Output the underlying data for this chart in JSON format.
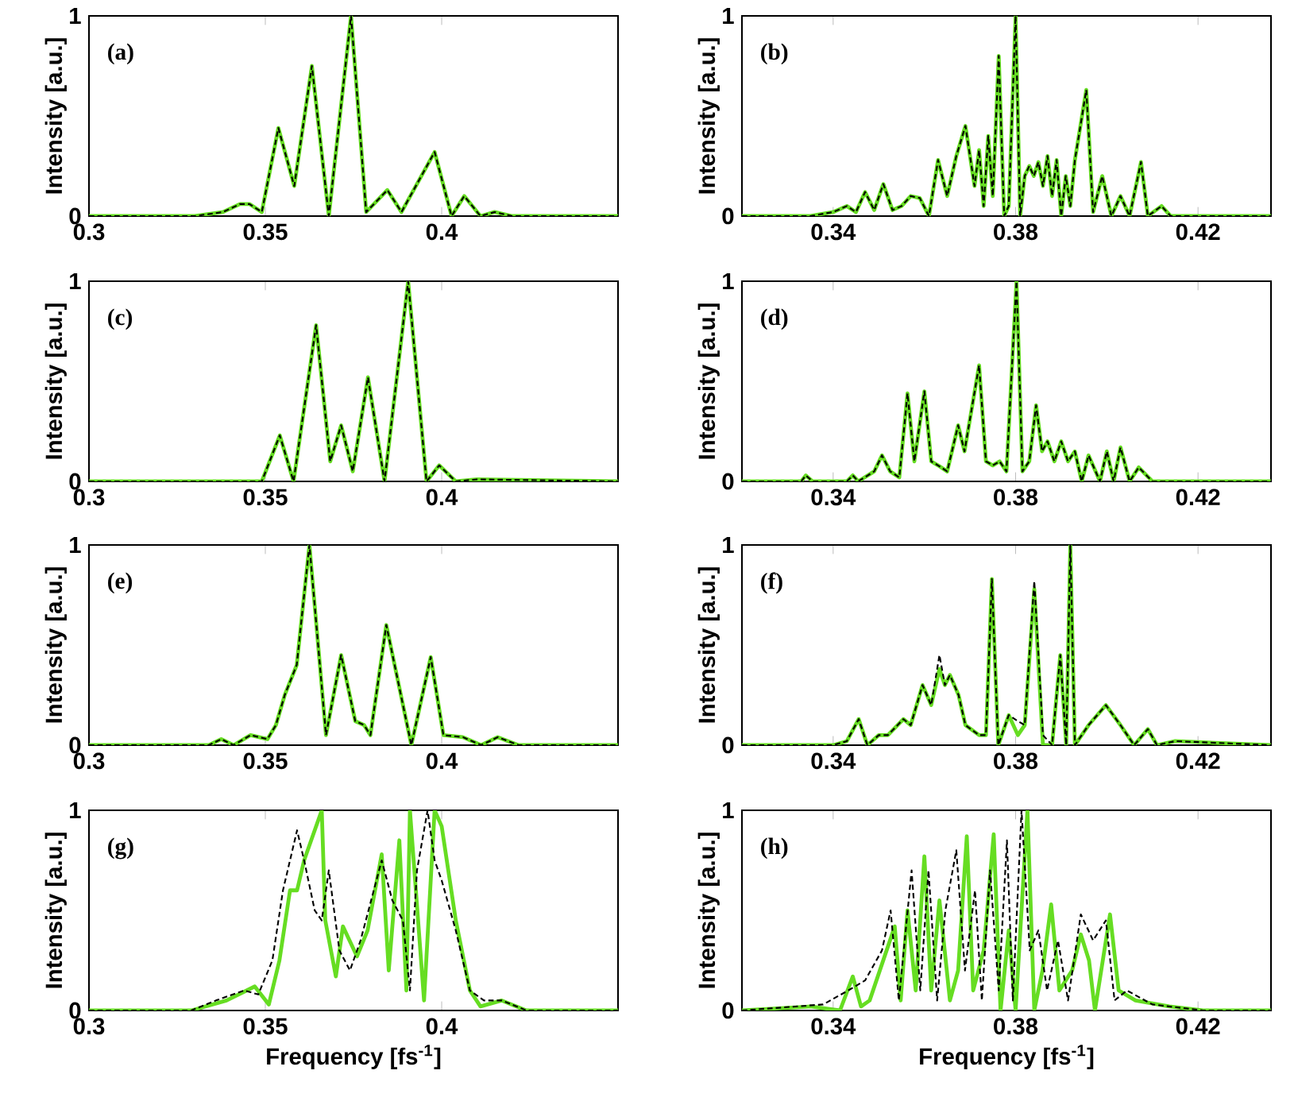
{
  "chart_data": [
    {
      "type": "line",
      "annotations": [
        "(a)"
      ],
      "ylabel": "Intensity [a.u.]",
      "xlim": [
        0.3,
        0.45
      ],
      "ylim": [
        0,
        1
      ],
      "xticks": [
        0.3,
        0.35,
        0.4
      ],
      "yticks": [
        0,
        1
      ],
      "x": [
        0.3,
        0.33,
        0.338,
        0.3428,
        0.3455,
        0.349,
        0.3537,
        0.3582,
        0.3632,
        0.368,
        0.3743,
        0.3786,
        0.3846,
        0.3886,
        0.398,
        0.4028,
        0.4064,
        0.411,
        0.415,
        0.42,
        0.425,
        0.45
      ],
      "series": [
        {
          "color": "#66dd22",
          "line_style": "solid",
          "values": [
            0,
            0,
            0.02,
            0.06,
            0.06,
            0.02,
            0.44,
            0.15,
            0.75,
            0.0,
            1.0,
            0.02,
            0.13,
            0.02,
            0.32,
            0.0,
            0.1,
            0.0,
            0.02,
            0.0,
            0,
            0
          ]
        },
        {
          "color": "#000000",
          "line_style": "dashed",
          "values": [
            0,
            0,
            0.02,
            0.06,
            0.06,
            0.02,
            0.44,
            0.15,
            0.75,
            0.0,
            1.0,
            0.02,
            0.13,
            0.02,
            0.32,
            0.0,
            0.1,
            0.0,
            0.02,
            0.0,
            0,
            0
          ]
        }
      ]
    },
    {
      "type": "line",
      "annotations": [
        "(b)"
      ],
      "ylabel": "Intensity [a.u.]",
      "xlim": [
        0.32,
        0.436
      ],
      "ylim": [
        0,
        1
      ],
      "xticks": [
        0.34,
        0.38,
        0.42
      ],
      "yticks": [
        0,
        1
      ],
      "x": [
        0.32,
        0.335,
        0.34,
        0.343,
        0.345,
        0.347,
        0.349,
        0.351,
        0.353,
        0.355,
        0.357,
        0.359,
        0.361,
        0.363,
        0.365,
        0.367,
        0.369,
        0.371,
        0.372,
        0.373,
        0.374,
        0.375,
        0.3763,
        0.3775,
        0.3785,
        0.38,
        0.381,
        0.382,
        0.383,
        0.384,
        0.385,
        0.386,
        0.387,
        0.388,
        0.389,
        0.39,
        0.391,
        0.392,
        0.393,
        0.3955,
        0.397,
        0.399,
        0.401,
        0.403,
        0.405,
        0.4075,
        0.409,
        0.412,
        0.414,
        0.436
      ],
      "series": [
        {
          "color": "#66dd22",
          "line_style": "solid",
          "values": [
            0,
            0,
            0.02,
            0.05,
            0.02,
            0.12,
            0.03,
            0.16,
            0.03,
            0.05,
            0.1,
            0.09,
            0.0,
            0.28,
            0.1,
            0.3,
            0.45,
            0.15,
            0.33,
            0.05,
            0.4,
            0.1,
            0.8,
            0.0,
            0.05,
            1.0,
            0.0,
            0.2,
            0.25,
            0.2,
            0.27,
            0.15,
            0.3,
            0.1,
            0.28,
            0.0,
            0.2,
            0.05,
            0.28,
            0.63,
            0.02,
            0.2,
            0.0,
            0.1,
            0.0,
            0.27,
            0.0,
            0.05,
            0.0,
            0
          ]
        },
        {
          "color": "#000000",
          "line_style": "dashed",
          "values": [
            0,
            0,
            0.02,
            0.05,
            0.02,
            0.12,
            0.03,
            0.16,
            0.03,
            0.05,
            0.1,
            0.09,
            0.0,
            0.28,
            0.1,
            0.3,
            0.45,
            0.15,
            0.33,
            0.05,
            0.4,
            0.1,
            0.8,
            0.0,
            0.05,
            1.0,
            0.0,
            0.2,
            0.25,
            0.2,
            0.27,
            0.15,
            0.3,
            0.1,
            0.28,
            0.0,
            0.2,
            0.05,
            0.28,
            0.63,
            0.02,
            0.2,
            0.0,
            0.1,
            0.0,
            0.27,
            0.0,
            0.05,
            0.0,
            0
          ]
        }
      ]
    },
    {
      "type": "line",
      "annotations": [
        "(c)"
      ],
      "ylabel": "Intensity [a.u.]",
      "xlim": [
        0.3,
        0.45
      ],
      "ylim": [
        0,
        1
      ],
      "xticks": [
        0.3,
        0.35,
        0.4
      ],
      "yticks": [
        0,
        1
      ],
      "x": [
        0.3,
        0.345,
        0.349,
        0.3541,
        0.358,
        0.3644,
        0.3684,
        0.3715,
        0.3748,
        0.3791,
        0.3838,
        0.3905,
        0.3957,
        0.3993,
        0.404,
        0.41,
        0.45
      ],
      "series": [
        {
          "color": "#66dd22",
          "line_style": "solid",
          "values": [
            0,
            0,
            0.0,
            0.23,
            0.0,
            0.78,
            0.1,
            0.28,
            0.05,
            0.52,
            0.0,
            1.0,
            0.0,
            0.08,
            0.0,
            0.01,
            0
          ]
        },
        {
          "color": "#000000",
          "line_style": "dashed",
          "values": [
            0,
            0,
            0.0,
            0.23,
            0.0,
            0.78,
            0.1,
            0.28,
            0.05,
            0.52,
            0.0,
            1.0,
            0.0,
            0.08,
            0.0,
            0.01,
            0
          ]
        }
      ]
    },
    {
      "type": "line",
      "annotations": [
        "(d)"
      ],
      "ylabel": "Intensity [a.u.]",
      "xlim": [
        0.32,
        0.436
      ],
      "ylim": [
        0,
        1
      ],
      "xticks": [
        0.34,
        0.38,
        0.42
      ],
      "yticks": [
        0,
        1
      ],
      "x": [
        0.32,
        0.333,
        0.334,
        0.3355,
        0.343,
        0.3443,
        0.3455,
        0.349,
        0.3507,
        0.3525,
        0.3545,
        0.3563,
        0.3578,
        0.36,
        0.3615,
        0.363,
        0.365,
        0.3674,
        0.3688,
        0.372,
        0.3735,
        0.375,
        0.3765,
        0.378,
        0.3802,
        0.3815,
        0.383,
        0.3845,
        0.3858,
        0.387,
        0.3885,
        0.39,
        0.3915,
        0.393,
        0.3945,
        0.396,
        0.3985,
        0.4,
        0.4015,
        0.403,
        0.405,
        0.407,
        0.41,
        0.436
      ],
      "series": [
        {
          "color": "#66dd22",
          "line_style": "solid",
          "values": [
            0,
            0,
            0.03,
            0,
            0,
            0.03,
            0,
            0.05,
            0.13,
            0.05,
            0.02,
            0.44,
            0.1,
            0.45,
            0.1,
            0.08,
            0.05,
            0.28,
            0.15,
            0.58,
            0.1,
            0.08,
            0.1,
            0.05,
            1.0,
            0.05,
            0.1,
            0.38,
            0.15,
            0.2,
            0.1,
            0.2,
            0.1,
            0.15,
            0.0,
            0.13,
            0.0,
            0.15,
            0.0,
            0.17,
            0.0,
            0.07,
            0.0,
            0
          ]
        },
        {
          "color": "#000000",
          "line_style": "dashed",
          "values": [
            0,
            0,
            0.03,
            0,
            0,
            0.03,
            0,
            0.05,
            0.13,
            0.05,
            0.02,
            0.44,
            0.1,
            0.45,
            0.1,
            0.08,
            0.05,
            0.28,
            0.15,
            0.58,
            0.1,
            0.08,
            0.1,
            0.05,
            1.0,
            0.05,
            0.1,
            0.38,
            0.15,
            0.2,
            0.1,
            0.2,
            0.1,
            0.15,
            0.0,
            0.13,
            0.0,
            0.15,
            0.0,
            0.17,
            0.0,
            0.07,
            0.0,
            0
          ]
        }
      ]
    },
    {
      "type": "line",
      "annotations": [
        "(e)"
      ],
      "ylabel": "Intensity [a.u.]",
      "xlim": [
        0.3,
        0.45
      ],
      "ylim": [
        0,
        1
      ],
      "xticks": [
        0.3,
        0.35,
        0.4
      ],
      "yticks": [
        0,
        1
      ],
      "x": [
        0.3,
        0.334,
        0.3375,
        0.341,
        0.3458,
        0.3506,
        0.353,
        0.3555,
        0.3589,
        0.3625,
        0.3672,
        0.3715,
        0.3755,
        0.378,
        0.3798,
        0.3843,
        0.3914,
        0.3969,
        0.4005,
        0.406,
        0.4112,
        0.4159,
        0.4218,
        0.45
      ],
      "series": [
        {
          "color": "#66dd22",
          "line_style": "solid",
          "values": [
            0,
            0,
            0.03,
            0.0,
            0.05,
            0.03,
            0.1,
            0.25,
            0.4,
            1.0,
            0.05,
            0.45,
            0.12,
            0.1,
            0.05,
            0.6,
            0.0,
            0.44,
            0.05,
            0.04,
            0.0,
            0.04,
            0,
            0
          ]
        },
        {
          "color": "#000000",
          "line_style": "dashed",
          "values": [
            0,
            0,
            0.03,
            0.0,
            0.05,
            0.03,
            0.1,
            0.25,
            0.4,
            1.0,
            0.05,
            0.45,
            0.12,
            0.1,
            0.05,
            0.6,
            0.0,
            0.44,
            0.05,
            0.04,
            0.0,
            0.04,
            0,
            0
          ]
        }
      ]
    },
    {
      "type": "line",
      "annotations": [
        "(f)"
      ],
      "ylabel": "Intensity [a.u.]",
      "xlim": [
        0.32,
        0.436
      ],
      "ylim": [
        0,
        1
      ],
      "xticks": [
        0.34,
        0.38,
        0.42
      ],
      "yticks": [
        0,
        1
      ],
      "x": [
        0.32,
        0.34,
        0.343,
        0.3456,
        0.3475,
        0.35,
        0.352,
        0.3554,
        0.357,
        0.3596,
        0.3615,
        0.3633,
        0.3645,
        0.3656,
        0.3675,
        0.369,
        0.372,
        0.3735,
        0.3748,
        0.3762,
        0.3785,
        0.3805,
        0.382,
        0.3841,
        0.386,
        0.388,
        0.3898,
        0.3911,
        0.392,
        0.393,
        0.3945,
        0.396,
        0.3998,
        0.403,
        0.406,
        0.409,
        0.411,
        0.415,
        0.436
      ],
      "series": [
        {
          "color": "#66dd22",
          "line_style": "solid",
          "values": [
            0,
            0,
            0.02,
            0.13,
            0.0,
            0.05,
            0.05,
            0.13,
            0.1,
            0.3,
            0.2,
            0.38,
            0.3,
            0.35,
            0.25,
            0.1,
            0.05,
            0.05,
            0.83,
            0.0,
            0.15,
            0.05,
            0.1,
            0.78,
            0.0,
            0.0,
            0.45,
            0.0,
            1.0,
            0.0,
            0.05,
            0.1,
            0.2,
            0.1,
            0.0,
            0.08,
            0.0,
            0.02,
            0
          ]
        },
        {
          "color": "#000000",
          "line_style": "dashed",
          "values": [
            0,
            0,
            0.02,
            0.13,
            0.0,
            0.05,
            0.05,
            0.13,
            0.1,
            0.3,
            0.2,
            0.45,
            0.3,
            0.35,
            0.25,
            0.1,
            0.05,
            0.05,
            0.83,
            0.0,
            0.15,
            0.12,
            0.1,
            0.82,
            0.05,
            0.0,
            0.45,
            0.0,
            1.0,
            0.0,
            0.05,
            0.1,
            0.2,
            0.1,
            0.0,
            0.08,
            0.0,
            0.02,
            0
          ]
        }
      ]
    },
    {
      "type": "line",
      "annotations": [
        "(g)"
      ],
      "xlabel": "Frequency [fs$^{-1}$]",
      "ylabel": "Intensity [a.u.]",
      "xlim": [
        0.3,
        0.45
      ],
      "ylim": [
        0,
        1
      ],
      "xticks": [
        0.3,
        0.35,
        0.4
      ],
      "yticks": [
        0,
        1
      ],
      "series": [
        {
          "color": "#66dd22",
          "line_style": "solid",
          "x": [
            0.3,
            0.329,
            0.339,
            0.347,
            0.351,
            0.354,
            0.357,
            0.359,
            0.361,
            0.366,
            0.367,
            0.37,
            0.372,
            0.376,
            0.379,
            0.383,
            0.385,
            0.388,
            0.39,
            0.391,
            0.395,
            0.398,
            0.4,
            0.404,
            0.408,
            0.411,
            0.417,
            0.424,
            0.45
          ],
          "values": [
            0,
            0,
            0.05,
            0.12,
            0.03,
            0.25,
            0.6,
            0.6,
            0.75,
            1.0,
            0.45,
            0.17,
            0.42,
            0.27,
            0.4,
            0.78,
            0.2,
            0.85,
            0.1,
            1.0,
            0.05,
            1.0,
            0.92,
            0.45,
            0.1,
            0.02,
            0.05,
            0,
            0
          ]
        },
        {
          "color": "#000000",
          "line_style": "dashed",
          "x": [
            0.3,
            0.329,
            0.336,
            0.344,
            0.348,
            0.352,
            0.355,
            0.359,
            0.361,
            0.364,
            0.366,
            0.368,
            0.371,
            0.374,
            0.377,
            0.38,
            0.383,
            0.386,
            0.389,
            0.391,
            0.393,
            0.396,
            0.398,
            0.4,
            0.404,
            0.408,
            0.412,
            0.417,
            0.424,
            0.45
          ],
          "values": [
            0,
            0,
            0.05,
            0.1,
            0.08,
            0.25,
            0.6,
            0.9,
            0.75,
            0.5,
            0.45,
            0.7,
            0.3,
            0.2,
            0.35,
            0.55,
            0.75,
            0.55,
            0.45,
            0.1,
            0.7,
            1.0,
            0.75,
            0.65,
            0.4,
            0.1,
            0.05,
            0.05,
            0,
            0
          ]
        }
      ]
    },
    {
      "type": "line",
      "annotations": [
        "(h)"
      ],
      "xlabel": "Frequency [fs$^{-1}$]",
      "ylabel": "Intensity [a.u.]",
      "xlim": [
        0.32,
        0.436
      ],
      "ylim": [
        0,
        1
      ],
      "xticks": [
        0.34,
        0.38,
        0.42
      ],
      "yticks": [
        0,
        1
      ],
      "series": [
        {
          "color": "#66dd22",
          "line_style": "solid",
          "x": [
            0.32,
            0.335,
            0.3415,
            0.3443,
            0.3461,
            0.348,
            0.3535,
            0.3548,
            0.3563,
            0.3581,
            0.36,
            0.3615,
            0.3633,
            0.3656,
            0.3674,
            0.3693,
            0.3707,
            0.373,
            0.3752,
            0.3767,
            0.3785,
            0.38,
            0.3826,
            0.3841,
            0.3859,
            0.3878,
            0.3896,
            0.3924,
            0.3943,
            0.3961,
            0.3974,
            0.4007,
            0.4026,
            0.4063,
            0.4137,
            0.4211,
            0.436
          ],
          "values": [
            0,
            0.02,
            0,
            0.17,
            0.02,
            0.05,
            0.42,
            0.05,
            0.5,
            0.1,
            0.77,
            0.1,
            0.55,
            0.05,
            0.2,
            0.87,
            0.1,
            0.3,
            0.88,
            0,
            0.4,
            0,
            1.0,
            0,
            0.2,
            0.53,
            0.1,
            0.2,
            0.38,
            0.25,
            0,
            0.48,
            0.1,
            0.05,
            0.02,
            0,
            0
          ]
        },
        {
          "color": "#000000",
          "line_style": "dashed",
          "x": [
            0.32,
            0.3378,
            0.3433,
            0.347,
            0.3507,
            0.3526,
            0.3544,
            0.3572,
            0.3591,
            0.3609,
            0.3628,
            0.3646,
            0.367,
            0.3689,
            0.3711,
            0.3726,
            0.3744,
            0.3763,
            0.3781,
            0.3794,
            0.3813,
            0.3831,
            0.385,
            0.3869,
            0.3893,
            0.3915,
            0.3943,
            0.397,
            0.3998,
            0.4017,
            0.4044,
            0.41,
            0.4211,
            0.436
          ],
          "values": [
            0,
            0.03,
            0.1,
            0.15,
            0.3,
            0.5,
            0.05,
            0.7,
            0.1,
            0.7,
            0.05,
            0.5,
            0.8,
            0.2,
            0.6,
            0.05,
            0.7,
            0.1,
            0.85,
            0.05,
            1.0,
            0.3,
            0.4,
            0.1,
            0.35,
            0.05,
            0.48,
            0.35,
            0.45,
            0.05,
            0.1,
            0.03,
            0,
            0
          ]
        }
      ]
    }
  ]
}
